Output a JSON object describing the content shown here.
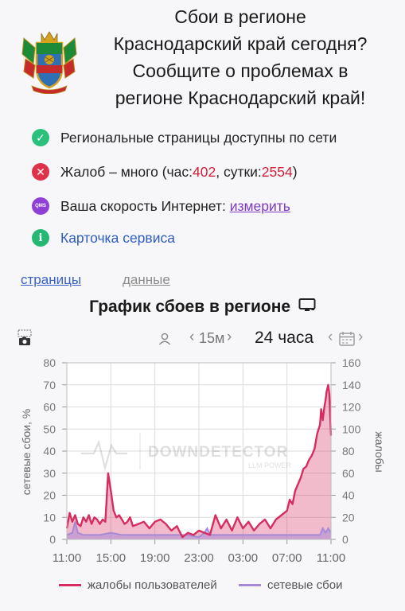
{
  "header": {
    "title_lines": [
      "Сбои в регионе",
      "Краснодарский край сегодня?",
      "Сообщите о проблемах в",
      "регионе Краснодарский край!"
    ],
    "emblem_icon": "coat-of-arms-icon"
  },
  "status": {
    "network_text": "Региональные страницы доступны по сети",
    "complaints_prefix": "Жалоб – много (час: ",
    "complaints_hour": "402",
    "complaints_mid": ", сутки: ",
    "complaints_day": "2554",
    "complaints_suffix": ")",
    "speed_text": "Ваша скорость Интернет: ",
    "speed_link": "измерить",
    "service_card": "Карточка сервиса",
    "qms_label": "QMS",
    "info_label": "i"
  },
  "tabs": {
    "pages": "страницы",
    "data": "данные"
  },
  "chart_header": {
    "title": "График сбоев в регионе"
  },
  "controls": {
    "interval": "15м",
    "period": "24 часа"
  },
  "watermark": {
    "brand": "DOWNDETECTOR",
    "sub": "LLM POWER"
  },
  "colors": {
    "complaints": "#d62c5f",
    "outages": "#a78ad6",
    "green": "#2bc17d",
    "red": "#e0314b",
    "purple": "#8e3fd6"
  },
  "chart_data": {
    "type": "area",
    "xlabel": "",
    "ylabel_left": "сетевые сбои, %",
    "ylabel_right": "жалобы",
    "x_ticks": [
      "11:00",
      "15:00",
      "19:00",
      "23:00",
      "03:00",
      "07:00",
      "11:00"
    ],
    "y_left_ticks": [
      "0",
      "10",
      "20",
      "30",
      "40",
      "50",
      "60",
      "70",
      "80"
    ],
    "y_right_ticks": [
      "0",
      "20",
      "40",
      "60",
      "80",
      "100",
      "120",
      "140",
      "160"
    ],
    "ylim_left": [
      0,
      80
    ],
    "ylim_right": [
      0,
      160
    ],
    "x_range_hours": [
      0,
      24
    ],
    "grid": true,
    "legend_position": "bottom",
    "series": [
      {
        "name": "жалобы пользователей",
        "axis": "right",
        "x": [
          0.0,
          0.25,
          0.5,
          0.75,
          1.0,
          1.25,
          1.5,
          1.75,
          2.0,
          2.25,
          2.5,
          2.75,
          3.0,
          3.25,
          3.5,
          3.75,
          4.0,
          4.25,
          4.5,
          4.75,
          5.0,
          5.25,
          5.5,
          5.75,
          6.0,
          6.5,
          7.0,
          7.5,
          8.0,
          8.5,
          9.0,
          9.5,
          10.0,
          10.5,
          11.0,
          11.5,
          12.0,
          12.5,
          13.0,
          13.5,
          14.0,
          14.5,
          15.0,
          15.5,
          16.0,
          16.5,
          17.0,
          17.5,
          18.0,
          18.5,
          19.0,
          19.5,
          20.0,
          20.25,
          20.5,
          20.75,
          21.0,
          21.25,
          21.5,
          21.75,
          22.0,
          22.25,
          22.5,
          22.75,
          23.0,
          23.1,
          23.25,
          23.4,
          23.5,
          23.6,
          23.75,
          23.85,
          24.0
        ],
        "values": [
          10,
          24,
          16,
          22,
          14,
          12,
          20,
          16,
          22,
          14,
          20,
          18,
          14,
          18,
          16,
          60,
          44,
          26,
          20,
          22,
          18,
          14,
          16,
          20,
          12,
          14,
          16,
          10,
          16,
          18,
          14,
          8,
          12,
          2,
          6,
          4,
          8,
          6,
          4,
          22,
          10,
          18,
          8,
          20,
          10,
          16,
          8,
          14,
          18,
          10,
          18,
          22,
          26,
          36,
          32,
          44,
          50,
          56,
          64,
          66,
          72,
          76,
          82,
          96,
          104,
          118,
          108,
          120,
          126,
          134,
          140,
          132,
          94
        ]
      },
      {
        "name": "сетевые сбои",
        "axis": "left",
        "x": [
          0.0,
          0.5,
          0.75,
          1.0,
          1.5,
          2.0,
          3.0,
          4.0,
          5.0,
          6.0,
          7.0,
          8.0,
          9.0,
          10.0,
          11.0,
          12.0,
          12.5,
          12.75,
          13.0,
          13.5,
          14.0,
          15.0,
          16.0,
          17.0,
          18.0,
          19.0,
          20.0,
          21.0,
          22.0,
          22.5,
          23.0,
          23.25,
          23.5,
          23.75,
          24.0
        ],
        "values": [
          2,
          3,
          8,
          3,
          2,
          2,
          2,
          3,
          2,
          2,
          2,
          2,
          2,
          2,
          2,
          1,
          3,
          5,
          2,
          2,
          2,
          2,
          2,
          2,
          2,
          2,
          2,
          2,
          2,
          2,
          2,
          5,
          3,
          5,
          3
        ]
      }
    ]
  },
  "legend": {
    "complaints": "жалобы пользователей",
    "outages": "сетевые сбои"
  }
}
